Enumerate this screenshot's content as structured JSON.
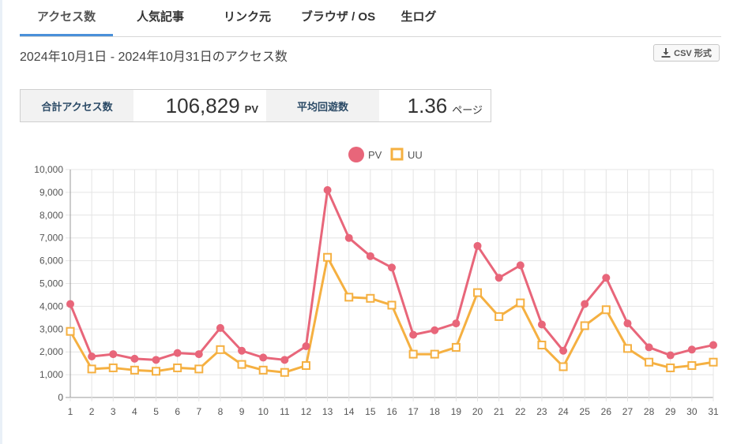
{
  "tabs": [
    {
      "label": "アクセス数",
      "active": true
    },
    {
      "label": "人気記事",
      "active": false
    },
    {
      "label": "リンク元",
      "active": false
    },
    {
      "label": "ブラウザ / OS",
      "active": false
    },
    {
      "label": "生ログ",
      "active": false
    }
  ],
  "date_range": "2024年10月1日 - 2024年10月31日のアクセス数",
  "csv_button": {
    "label": "CSV 形式",
    "icon": "download-icon"
  },
  "stats": {
    "total_label": "合計アクセス数",
    "total_value": "106,829",
    "total_unit": "PV",
    "avg_label": "平均回遊数",
    "avg_value": "1.36",
    "avg_unit": "ページ"
  },
  "colors": {
    "pv": "#e8667a",
    "uu": "#f5b041",
    "accent": "#4a90d9",
    "weekend_blue": "#3a9ad9",
    "weekend_red": "#e8667a"
  },
  "chart_data": {
    "type": "line",
    "legend": [
      "PV",
      "UU"
    ],
    "legend_placement": "top-center",
    "grid": true,
    "ylim": [
      0,
      10000
    ],
    "yticks": [
      "0",
      "1,000",
      "2,000",
      "3,000",
      "4,000",
      "5,000",
      "6,000",
      "7,000",
      "8,000",
      "9,000",
      "10,000"
    ],
    "x": [
      "1",
      "2",
      "3",
      "4",
      "5",
      "6",
      "7",
      "8",
      "9",
      "10",
      "11",
      "12",
      "13",
      "14",
      "15",
      "16",
      "17",
      "18",
      "19",
      "20",
      "21",
      "22",
      "23",
      "24",
      "25",
      "26",
      "27",
      "28",
      "29",
      "30",
      "31"
    ],
    "x_label_colors": {
      "5": "blue",
      "6": "red",
      "12": "blue",
      "13": "red",
      "19": "blue",
      "20": "red",
      "26": "blue",
      "27": "red"
    },
    "series": [
      {
        "name": "PV",
        "values": [
          4100,
          1800,
          1900,
          1700,
          1650,
          1950,
          1900,
          3050,
          2050,
          1750,
          1650,
          2250,
          9100,
          7000,
          6200,
          5700,
          2750,
          2950,
          3250,
          6650,
          5250,
          5800,
          3200,
          2050,
          4100,
          5250,
          3250,
          2200,
          1850,
          2100,
          2300
        ]
      },
      {
        "name": "UU",
        "values": [
          2900,
          1250,
          1300,
          1200,
          1150,
          1300,
          1250,
          2100,
          1450,
          1200,
          1100,
          1400,
          6150,
          4400,
          4350,
          4050,
          1900,
          1900,
          2200,
          4600,
          3550,
          4150,
          2300,
          1350,
          3150,
          3850,
          2150,
          1550,
          1300,
          1400,
          1550
        ]
      }
    ]
  }
}
